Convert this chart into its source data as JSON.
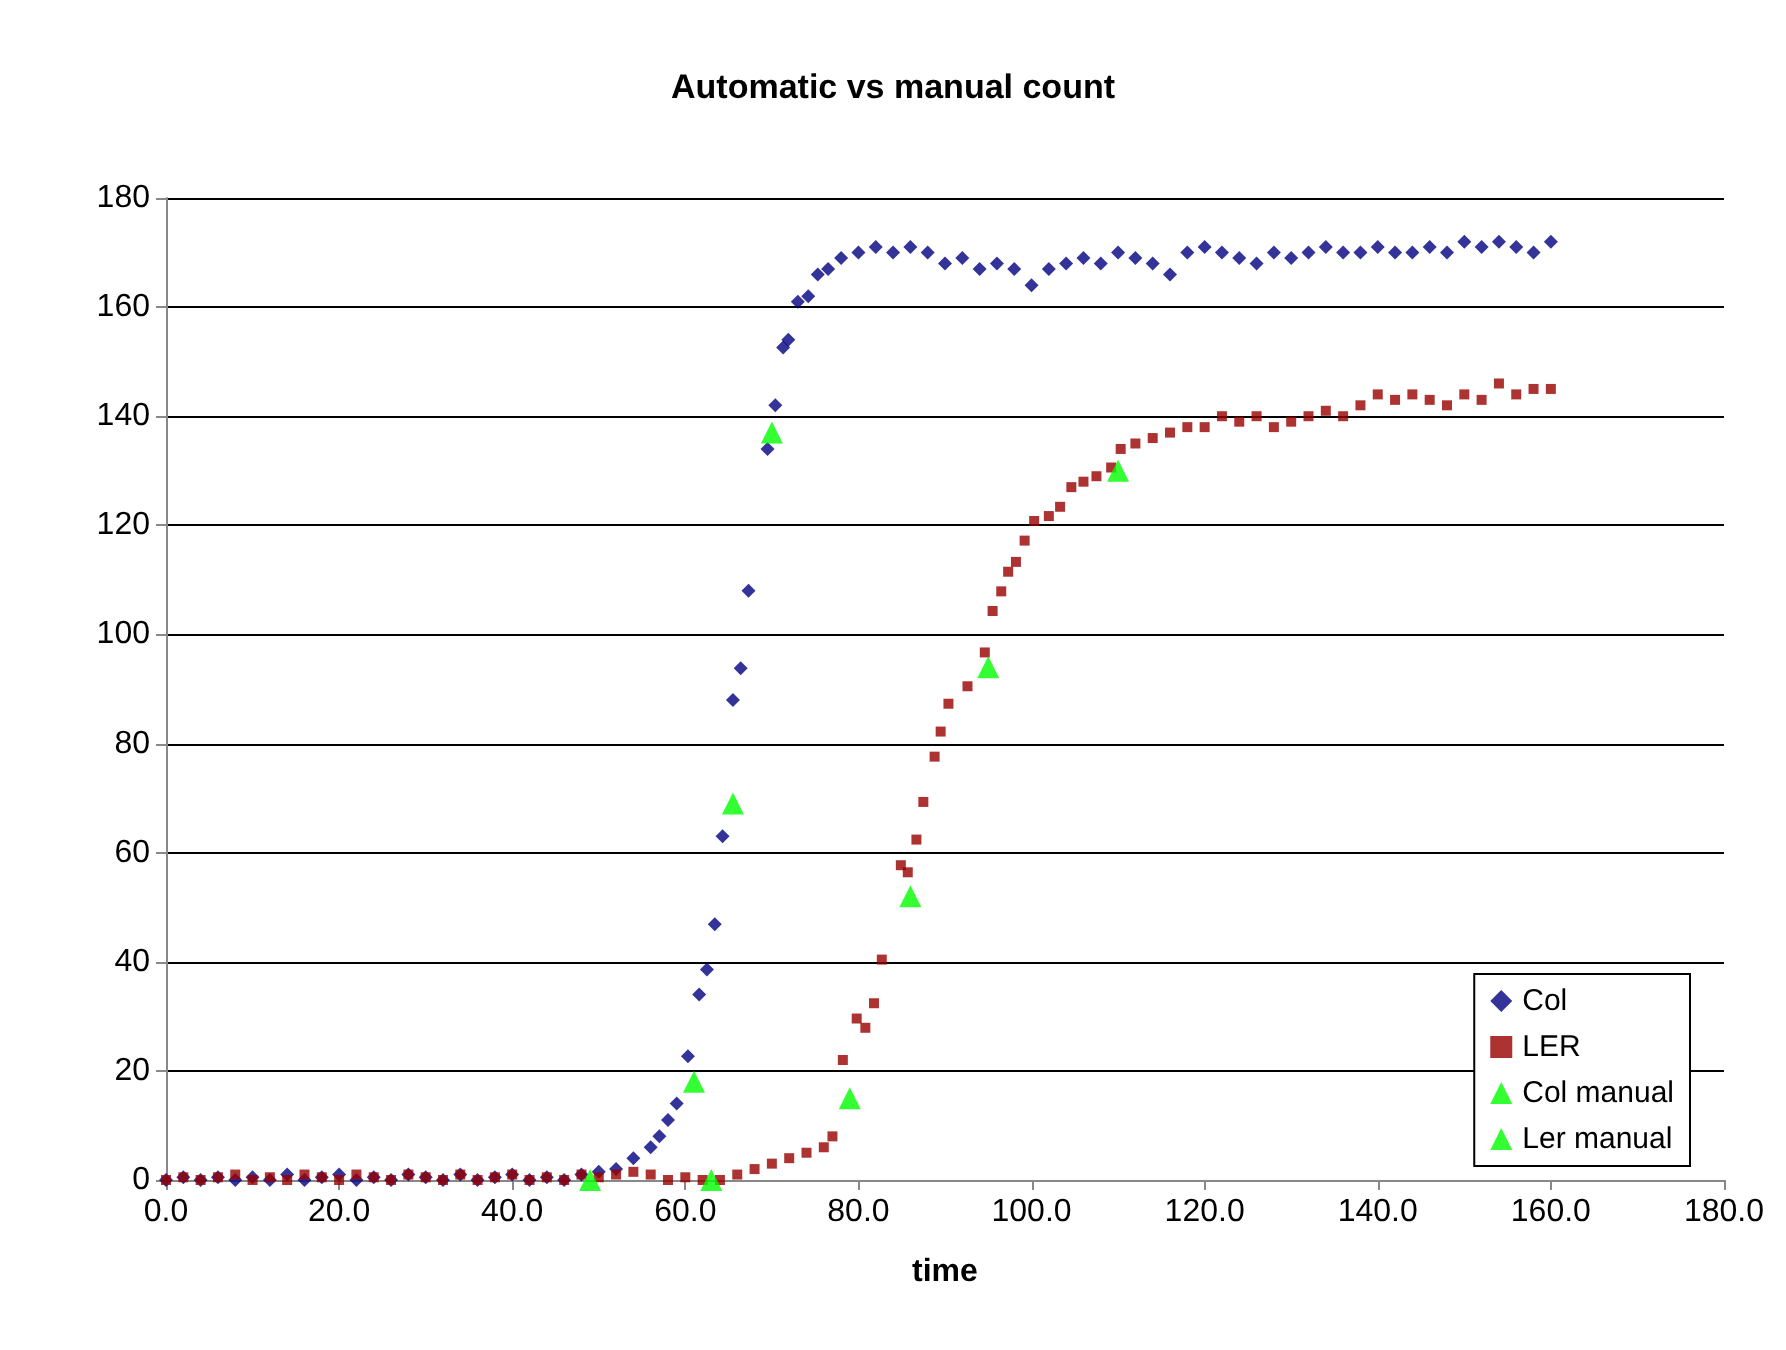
{
  "chart_data": {
    "type": "scatter",
    "title": "Automatic vs manual count",
    "xlabel": "time",
    "xlim": [
      0,
      180
    ],
    "xticks": [
      {
        "value": 0,
        "label": "0.0"
      },
      {
        "value": 20,
        "label": "20.0"
      },
      {
        "value": 40,
        "label": "40.0"
      },
      {
        "value": 60,
        "label": "60.0"
      },
      {
        "value": 80,
        "label": "80.0"
      },
      {
        "value": 100,
        "label": "100.0"
      },
      {
        "value": 120,
        "label": "120.0"
      },
      {
        "value": 140,
        "label": "140.0"
      },
      {
        "value": 160,
        "label": "160.0"
      },
      {
        "value": 180,
        "label": "180.0"
      }
    ],
    "ylim": [
      0,
      180
    ],
    "yticks": [
      0,
      20,
      40,
      60,
      80,
      100,
      120,
      140,
      160,
      180
    ],
    "grid": "y",
    "legend": "bottom right",
    "series": [
      {
        "name": "Col",
        "color": "#000080",
        "marker": "diamond",
        "x": [
          0,
          2,
          4,
          6,
          8,
          10,
          12,
          14,
          16,
          18,
          20,
          22,
          24,
          26,
          28,
          30,
          32,
          34,
          36,
          38,
          40,
          42,
          44,
          46,
          48,
          50,
          52,
          54,
          56,
          57,
          58,
          59,
          60.3,
          61.6,
          62.5,
          63.4,
          64.3,
          65.5,
          66.4,
          67.3,
          69.5,
          70.4,
          71.3,
          71.9,
          73,
          74.2,
          75.3,
          76.5,
          78,
          80,
          82,
          84,
          86,
          88,
          90,
          92,
          94,
          96,
          98,
          100,
          102,
          104,
          106,
          108,
          110,
          112,
          114,
          116,
          118,
          120,
          122,
          124,
          126,
          128,
          130,
          132,
          134,
          136,
          138,
          140,
          142,
          144,
          146,
          148,
          150,
          152,
          154,
          156,
          158,
          160
        ],
        "values": [
          0,
          0.5,
          0,
          0.5,
          0,
          0.5,
          0,
          1,
          0,
          0.5,
          1,
          0,
          0.5,
          0,
          1,
          0.5,
          0,
          1,
          0,
          0.5,
          1,
          0,
          0.5,
          0,
          1,
          1.5,
          2,
          4,
          6,
          8,
          11,
          14,
          22.7,
          34,
          38.6,
          46.9,
          63,
          88,
          93.8,
          108,
          134,
          142,
          152.6,
          154,
          161,
          162,
          166,
          167,
          169,
          170,
          171,
          170,
          171,
          170,
          168,
          169,
          167,
          168,
          167,
          164,
          167,
          168,
          169,
          168,
          170,
          169,
          168,
          166,
          170,
          171,
          170,
          169,
          168,
          170,
          169,
          170,
          171,
          170,
          170,
          171,
          170,
          170,
          171,
          170,
          172,
          171,
          172,
          171,
          170,
          172
        ]
      },
      {
        "name": "LER",
        "color": "#990000",
        "marker": "square",
        "x": [
          0,
          2,
          4,
          6,
          8,
          10,
          12,
          14,
          16,
          18,
          20,
          22,
          24,
          26,
          28,
          30,
          32,
          34,
          36,
          38,
          40,
          42,
          44,
          46,
          48,
          50,
          52,
          54,
          56,
          58,
          60,
          62,
          64,
          66,
          68,
          70,
          72,
          74,
          76,
          77,
          78.2,
          79.8,
          80.8,
          81.8,
          82.7,
          84.9,
          85.7,
          86.7,
          87.5,
          88.8,
          89.5,
          90.4,
          92.6,
          94.6,
          95.5,
          96.5,
          97.3,
          98.2,
          99.2,
          100.3,
          102,
          103.3,
          104.6,
          106,
          107.5,
          109.2,
          110.3,
          112,
          114,
          116,
          118,
          120,
          122,
          124,
          126,
          128,
          130,
          132,
          134,
          136,
          138,
          140,
          142,
          144,
          146,
          148,
          150,
          152,
          154,
          156,
          158,
          160
        ],
        "values": [
          0,
          0.5,
          0,
          0.5,
          1,
          0,
          0.5,
          0,
          1,
          0.5,
          0,
          1,
          0.5,
          0,
          1,
          0.5,
          0,
          1,
          0,
          0.5,
          1,
          0,
          0.5,
          0,
          1,
          0.5,
          1,
          1.5,
          1,
          0,
          0.5,
          0,
          0,
          1,
          2,
          3,
          4,
          5,
          6,
          8,
          22,
          29.6,
          27.9,
          32.4,
          40.4,
          57.7,
          56.4,
          62.4,
          69.3,
          77.6,
          82.2,
          87.3,
          90.5,
          96.7,
          104.3,
          107.9,
          111.5,
          113.3,
          117.2,
          120.8,
          121.7,
          123.4,
          127,
          128,
          129,
          130.6,
          134,
          135,
          136,
          137,
          138,
          138,
          140,
          139,
          140,
          138,
          139,
          140,
          141,
          140,
          142,
          144,
          143,
          144,
          143,
          142,
          144,
          143,
          146,
          144,
          145,
          145
        ]
      },
      {
        "name": "Col manual",
        "color": "#00ff00",
        "marker": "triangle",
        "x": [
          49,
          61,
          65.5,
          70
        ],
        "values": [
          0,
          18,
          69,
          137
        ]
      },
      {
        "name": "Ler manual",
        "color": "#00ff00",
        "marker": "triangle",
        "x": [
          63,
          79,
          86,
          95,
          110
        ],
        "values": [
          0,
          15,
          52,
          94,
          130
        ]
      }
    ]
  }
}
